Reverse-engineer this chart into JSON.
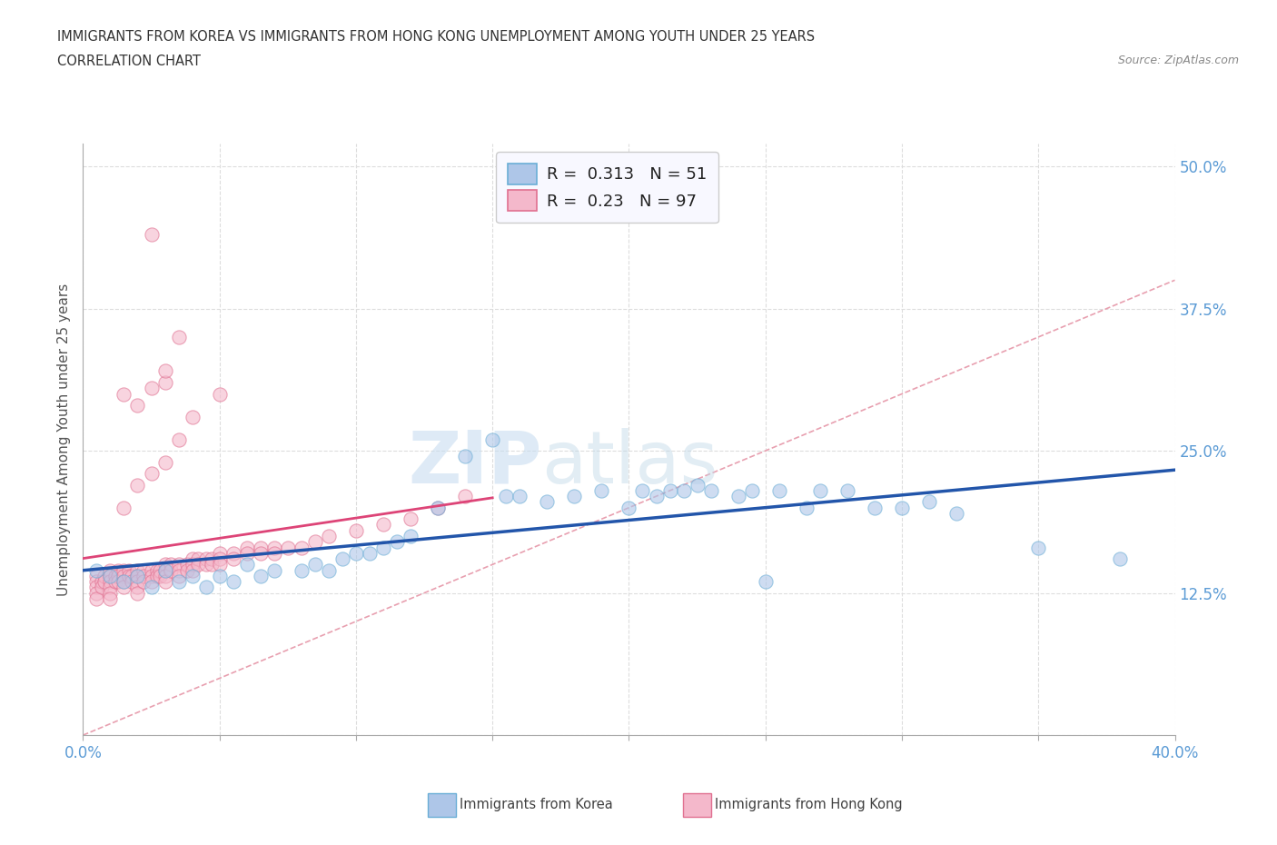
{
  "title_line1": "IMMIGRANTS FROM KOREA VS IMMIGRANTS FROM HONG KONG UNEMPLOYMENT AMONG YOUTH UNDER 25 YEARS",
  "title_line2": "CORRELATION CHART",
  "source": "Source: ZipAtlas.com",
  "ylabel": "Unemployment Among Youth under 25 years",
  "xmin": 0.0,
  "xmax": 0.4,
  "ymin": 0.0,
  "ymax": 0.52,
  "yticks": [
    0.0,
    0.125,
    0.25,
    0.375,
    0.5
  ],
  "ytick_labels": [
    "",
    "12.5%",
    "25.0%",
    "37.5%",
    "50.0%"
  ],
  "xticks": [
    0.0,
    0.05,
    0.1,
    0.15,
    0.2,
    0.25,
    0.3,
    0.35,
    0.4
  ],
  "xtick_labels": [
    "0.0%",
    "",
    "",
    "",
    "",
    "",
    "",
    "",
    "40.0%"
  ],
  "korea_color": "#aec6e8",
  "korea_edge": "#6aaed6",
  "hk_color": "#f4b8cb",
  "hk_edge": "#e07090",
  "korea_R": 0.313,
  "korea_N": 51,
  "hk_R": 0.23,
  "hk_N": 97,
  "korea_x": [
    0.005,
    0.01,
    0.015,
    0.02,
    0.025,
    0.03,
    0.035,
    0.04,
    0.045,
    0.05,
    0.055,
    0.06,
    0.065,
    0.07,
    0.08,
    0.085,
    0.09,
    0.095,
    0.1,
    0.105,
    0.11,
    0.115,
    0.12,
    0.13,
    0.14,
    0.15,
    0.155,
    0.16,
    0.17,
    0.18,
    0.19,
    0.2,
    0.205,
    0.21,
    0.215,
    0.22,
    0.225,
    0.23,
    0.24,
    0.245,
    0.25,
    0.255,
    0.265,
    0.27,
    0.28,
    0.29,
    0.3,
    0.31,
    0.32,
    0.35,
    0.38
  ],
  "korea_y": [
    0.145,
    0.14,
    0.135,
    0.14,
    0.13,
    0.145,
    0.135,
    0.14,
    0.13,
    0.14,
    0.135,
    0.15,
    0.14,
    0.145,
    0.145,
    0.15,
    0.145,
    0.155,
    0.16,
    0.16,
    0.165,
    0.17,
    0.175,
    0.2,
    0.245,
    0.26,
    0.21,
    0.21,
    0.205,
    0.21,
    0.215,
    0.2,
    0.215,
    0.21,
    0.215,
    0.215,
    0.22,
    0.215,
    0.21,
    0.215,
    0.135,
    0.215,
    0.2,
    0.215,
    0.215,
    0.2,
    0.2,
    0.205,
    0.195,
    0.165,
    0.155
  ],
  "hk_x": [
    0.005,
    0.005,
    0.005,
    0.005,
    0.005,
    0.007,
    0.007,
    0.008,
    0.008,
    0.01,
    0.01,
    0.01,
    0.01,
    0.01,
    0.01,
    0.012,
    0.012,
    0.013,
    0.013,
    0.013,
    0.015,
    0.015,
    0.015,
    0.015,
    0.017,
    0.017,
    0.018,
    0.018,
    0.02,
    0.02,
    0.02,
    0.02,
    0.02,
    0.022,
    0.022,
    0.022,
    0.025,
    0.025,
    0.025,
    0.027,
    0.027,
    0.028,
    0.028,
    0.03,
    0.03,
    0.03,
    0.03,
    0.032,
    0.032,
    0.035,
    0.035,
    0.035,
    0.038,
    0.038,
    0.04,
    0.04,
    0.04,
    0.042,
    0.042,
    0.045,
    0.045,
    0.047,
    0.047,
    0.05,
    0.05,
    0.05,
    0.055,
    0.055,
    0.06,
    0.06,
    0.065,
    0.065,
    0.07,
    0.07,
    0.075,
    0.08,
    0.085,
    0.09,
    0.1,
    0.11,
    0.12,
    0.13,
    0.14,
    0.015,
    0.02,
    0.025,
    0.03,
    0.035,
    0.04,
    0.05,
    0.015,
    0.02,
    0.025,
    0.03,
    0.025,
    0.03,
    0.035
  ],
  "hk_y": [
    0.14,
    0.135,
    0.13,
    0.125,
    0.12,
    0.135,
    0.13,
    0.14,
    0.135,
    0.145,
    0.14,
    0.135,
    0.13,
    0.125,
    0.12,
    0.14,
    0.135,
    0.145,
    0.14,
    0.135,
    0.145,
    0.14,
    0.135,
    0.13,
    0.145,
    0.14,
    0.14,
    0.135,
    0.145,
    0.14,
    0.135,
    0.13,
    0.125,
    0.145,
    0.14,
    0.135,
    0.145,
    0.14,
    0.135,
    0.145,
    0.14,
    0.145,
    0.14,
    0.15,
    0.145,
    0.14,
    0.135,
    0.15,
    0.145,
    0.15,
    0.145,
    0.14,
    0.15,
    0.145,
    0.155,
    0.15,
    0.145,
    0.155,
    0.15,
    0.155,
    0.15,
    0.155,
    0.15,
    0.16,
    0.155,
    0.15,
    0.16,
    0.155,
    0.165,
    0.16,
    0.165,
    0.16,
    0.165,
    0.16,
    0.165,
    0.165,
    0.17,
    0.175,
    0.18,
    0.185,
    0.19,
    0.2,
    0.21,
    0.2,
    0.22,
    0.23,
    0.24,
    0.26,
    0.28,
    0.3,
    0.3,
    0.29,
    0.305,
    0.31,
    0.44,
    0.32,
    0.35
  ],
  "watermark_zip": "ZIP",
  "watermark_atlas": "atlas",
  "diagonal_line_color": "#e8a0b0",
  "diagonal_line_style": "--",
  "regression_line_color": "#2255aa",
  "hk_regression_line_color": "#dd4477",
  "title_color": "#333333",
  "axis_label_color": "#555555",
  "tick_label_color": "#5b9bd5",
  "grid_color": "#dddddd",
  "background_color": "#ffffff",
  "legend_box_color": "#f0f0f8",
  "scatter_size": 120,
  "scatter_alpha": 0.6
}
